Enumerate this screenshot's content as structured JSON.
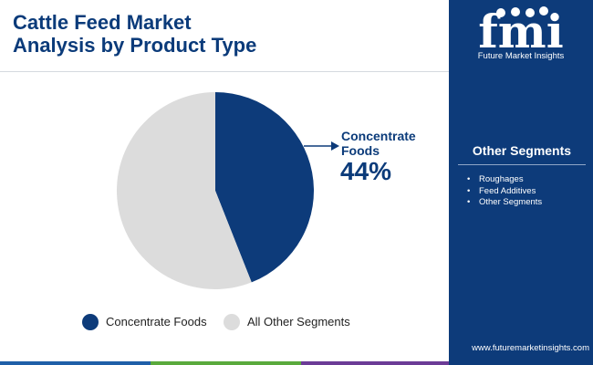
{
  "header": {
    "title_line1": "Cattle Feed Market",
    "title_line2": "Analysis by Product Type"
  },
  "logo": {
    "letters": "fmi",
    "caption": "Future Market Insights"
  },
  "sidebar": {
    "title": "Other Segments",
    "bullet": "•",
    "items": [
      "Roughages",
      "Feed Additives",
      "Other Segments"
    ],
    "website": "www.futuremarketinsights.com"
  },
  "callout": {
    "name_line1": "Concentrate",
    "name_line2": "Foods",
    "value": "44%"
  },
  "colors": {
    "brand_navy": "#0d3b7a",
    "slice_gray": "#dcdcdc",
    "bar_blue": "#1f5fa8",
    "bar_green": "#5aaa3c",
    "bar_purple": "#6b3b96"
  },
  "chart_data": {
    "type": "pie",
    "title": "",
    "slices": [
      {
        "label": "Concentrate Foods",
        "value": 44,
        "color": "#0d3b7a"
      },
      {
        "label": "All Other Segments",
        "value": 56,
        "color": "#dcdcdc"
      }
    ],
    "start": "12 o'clock",
    "direction": "clockwise",
    "legend_position": "bottom"
  }
}
